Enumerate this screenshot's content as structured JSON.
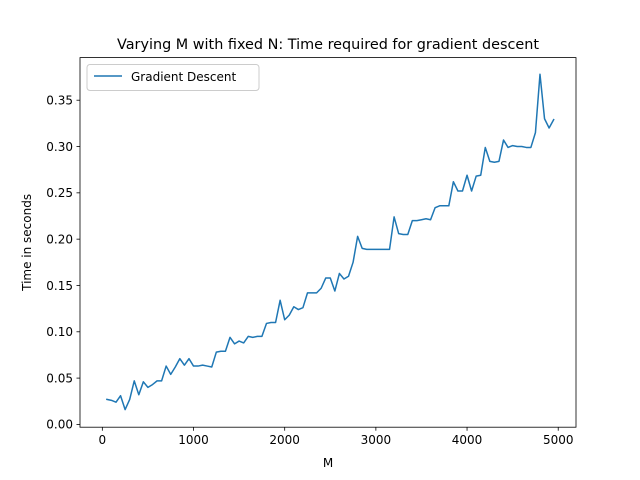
{
  "chart_data": {
    "type": "line",
    "title": "Varying M with fixed N: Time required for gradient descent",
    "xlabel": "M",
    "ylabel": "Time in seconds",
    "xlim": [
      -245,
      5195
    ],
    "ylim": [
      -0.003,
      0.396
    ],
    "xticks": [
      0,
      1000,
      2000,
      3000,
      4000,
      5000
    ],
    "xtick_labels": [
      "0",
      "1000",
      "2000",
      "3000",
      "4000",
      "5000"
    ],
    "yticks": [
      0.0,
      0.05,
      0.1,
      0.15,
      0.2,
      0.25,
      0.3,
      0.35
    ],
    "ytick_labels": [
      "0.00",
      "0.05",
      "0.10",
      "0.15",
      "0.20",
      "0.25",
      "0.30",
      "0.35"
    ],
    "grid": false,
    "legend": {
      "position": "top-left",
      "entries": [
        "Gradient Descent"
      ]
    },
    "series": [
      {
        "name": "Gradient Descent",
        "color": "#1f77b4",
        "x": [
          50,
          100,
          150,
          200,
          250,
          300,
          350,
          400,
          450,
          500,
          550,
          600,
          650,
          700,
          750,
          800,
          850,
          900,
          950,
          1000,
          1050,
          1100,
          1150,
          1200,
          1250,
          1300,
          1350,
          1400,
          1450,
          1500,
          1550,
          1600,
          1650,
          1700,
          1750,
          1800,
          1850,
          1900,
          1950,
          2000,
          2050,
          2100,
          2150,
          2200,
          2250,
          2300,
          2350,
          2400,
          2450,
          2500,
          2550,
          2600,
          2650,
          2700,
          2750,
          2800,
          2850,
          2900,
          2950,
          3000,
          3050,
          3100,
          3150,
          3200,
          3250,
          3300,
          3350,
          3400,
          3450,
          3500,
          3550,
          3600,
          3650,
          3700,
          3750,
          3800,
          3850,
          3900,
          3950,
          4000,
          4050,
          4100,
          4150,
          4200,
          4250,
          4300,
          4350,
          4400,
          4450,
          4500,
          4550,
          4600,
          4650,
          4700,
          4750,
          4800,
          4850,
          4900,
          4950
        ],
        "y": [
          0.027,
          0.026,
          0.024,
          0.031,
          0.016,
          0.027,
          0.047,
          0.032,
          0.046,
          0.04,
          0.043,
          0.047,
          0.047,
          0.063,
          0.054,
          0.062,
          0.071,
          0.064,
          0.071,
          0.063,
          0.063,
          0.064,
          0.063,
          0.062,
          0.078,
          0.079,
          0.079,
          0.094,
          0.087,
          0.09,
          0.088,
          0.095,
          0.094,
          0.095,
          0.095,
          0.109,
          0.11,
          0.11,
          0.134,
          0.113,
          0.118,
          0.127,
          0.124,
          0.126,
          0.142,
          0.142,
          0.142,
          0.147,
          0.158,
          0.158,
          0.144,
          0.163,
          0.157,
          0.16,
          0.175,
          0.203,
          0.19,
          0.189,
          0.189,
          0.189,
          0.189,
          0.189,
          0.189,
          0.224,
          0.206,
          0.205,
          0.205,
          0.22,
          0.22,
          0.221,
          0.222,
          0.221,
          0.234,
          0.236,
          0.236,
          0.236,
          0.262,
          0.252,
          0.252,
          0.269,
          0.252,
          0.268,
          0.269,
          0.299,
          0.284,
          0.283,
          0.284,
          0.307,
          0.299,
          0.301,
          0.3,
          0.3,
          0.299,
          0.299,
          0.315,
          0.378,
          0.33,
          0.32,
          0.329
        ]
      }
    ]
  }
}
